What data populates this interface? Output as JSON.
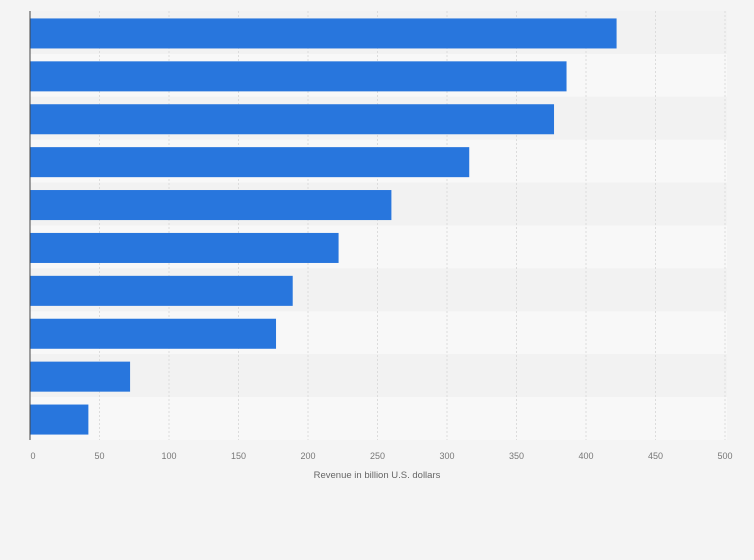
{
  "chart_data": {
    "type": "bar",
    "orientation": "horizontal",
    "categories": [
      "",
      "",
      "",
      "",
      "",
      "",
      "",
      "",
      "",
      ""
    ],
    "values": [
      422,
      386,
      377,
      316,
      260,
      222,
      189,
      177,
      72,
      42
    ],
    "title": "",
    "xlabel": "Revenue in billion U.S. dollars",
    "ylabel": "",
    "xlim": [
      0,
      500
    ],
    "xticks": [
      "0",
      "50",
      "100",
      "150",
      "200",
      "250",
      "300",
      "350",
      "400",
      "450",
      "500"
    ],
    "grid": true,
    "bar_color": "#2876dd"
  }
}
